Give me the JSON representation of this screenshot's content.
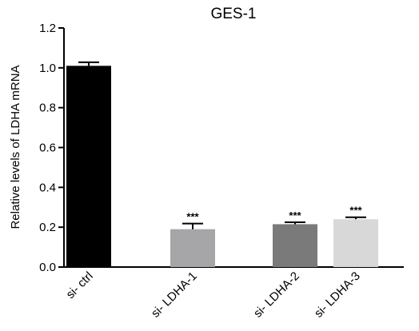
{
  "chart_data": {
    "type": "bar",
    "title": "GES-1",
    "xlabel": "",
    "ylabel": "Relative levels of LDHA mRNA",
    "ylim": [
      0,
      1.2
    ],
    "yticks": [
      "0.0",
      "0.2",
      "0.4",
      "0.6",
      "0.8",
      "1.0",
      "1.2"
    ],
    "grid": false,
    "categories": [
      "si- ctrl",
      "si- LDHA-1",
      "si- LDHA-2",
      "si- LDHA-3"
    ],
    "values": [
      1.01,
      0.19,
      0.215,
      0.24
    ],
    "errors": [
      0.018,
      0.028,
      0.01,
      0.01
    ],
    "significance": [
      "",
      "***",
      "***",
      "***"
    ],
    "colors": [
      "#000000",
      "#a6a6a8",
      "#7a7a7a",
      "#d8d8d8"
    ]
  }
}
